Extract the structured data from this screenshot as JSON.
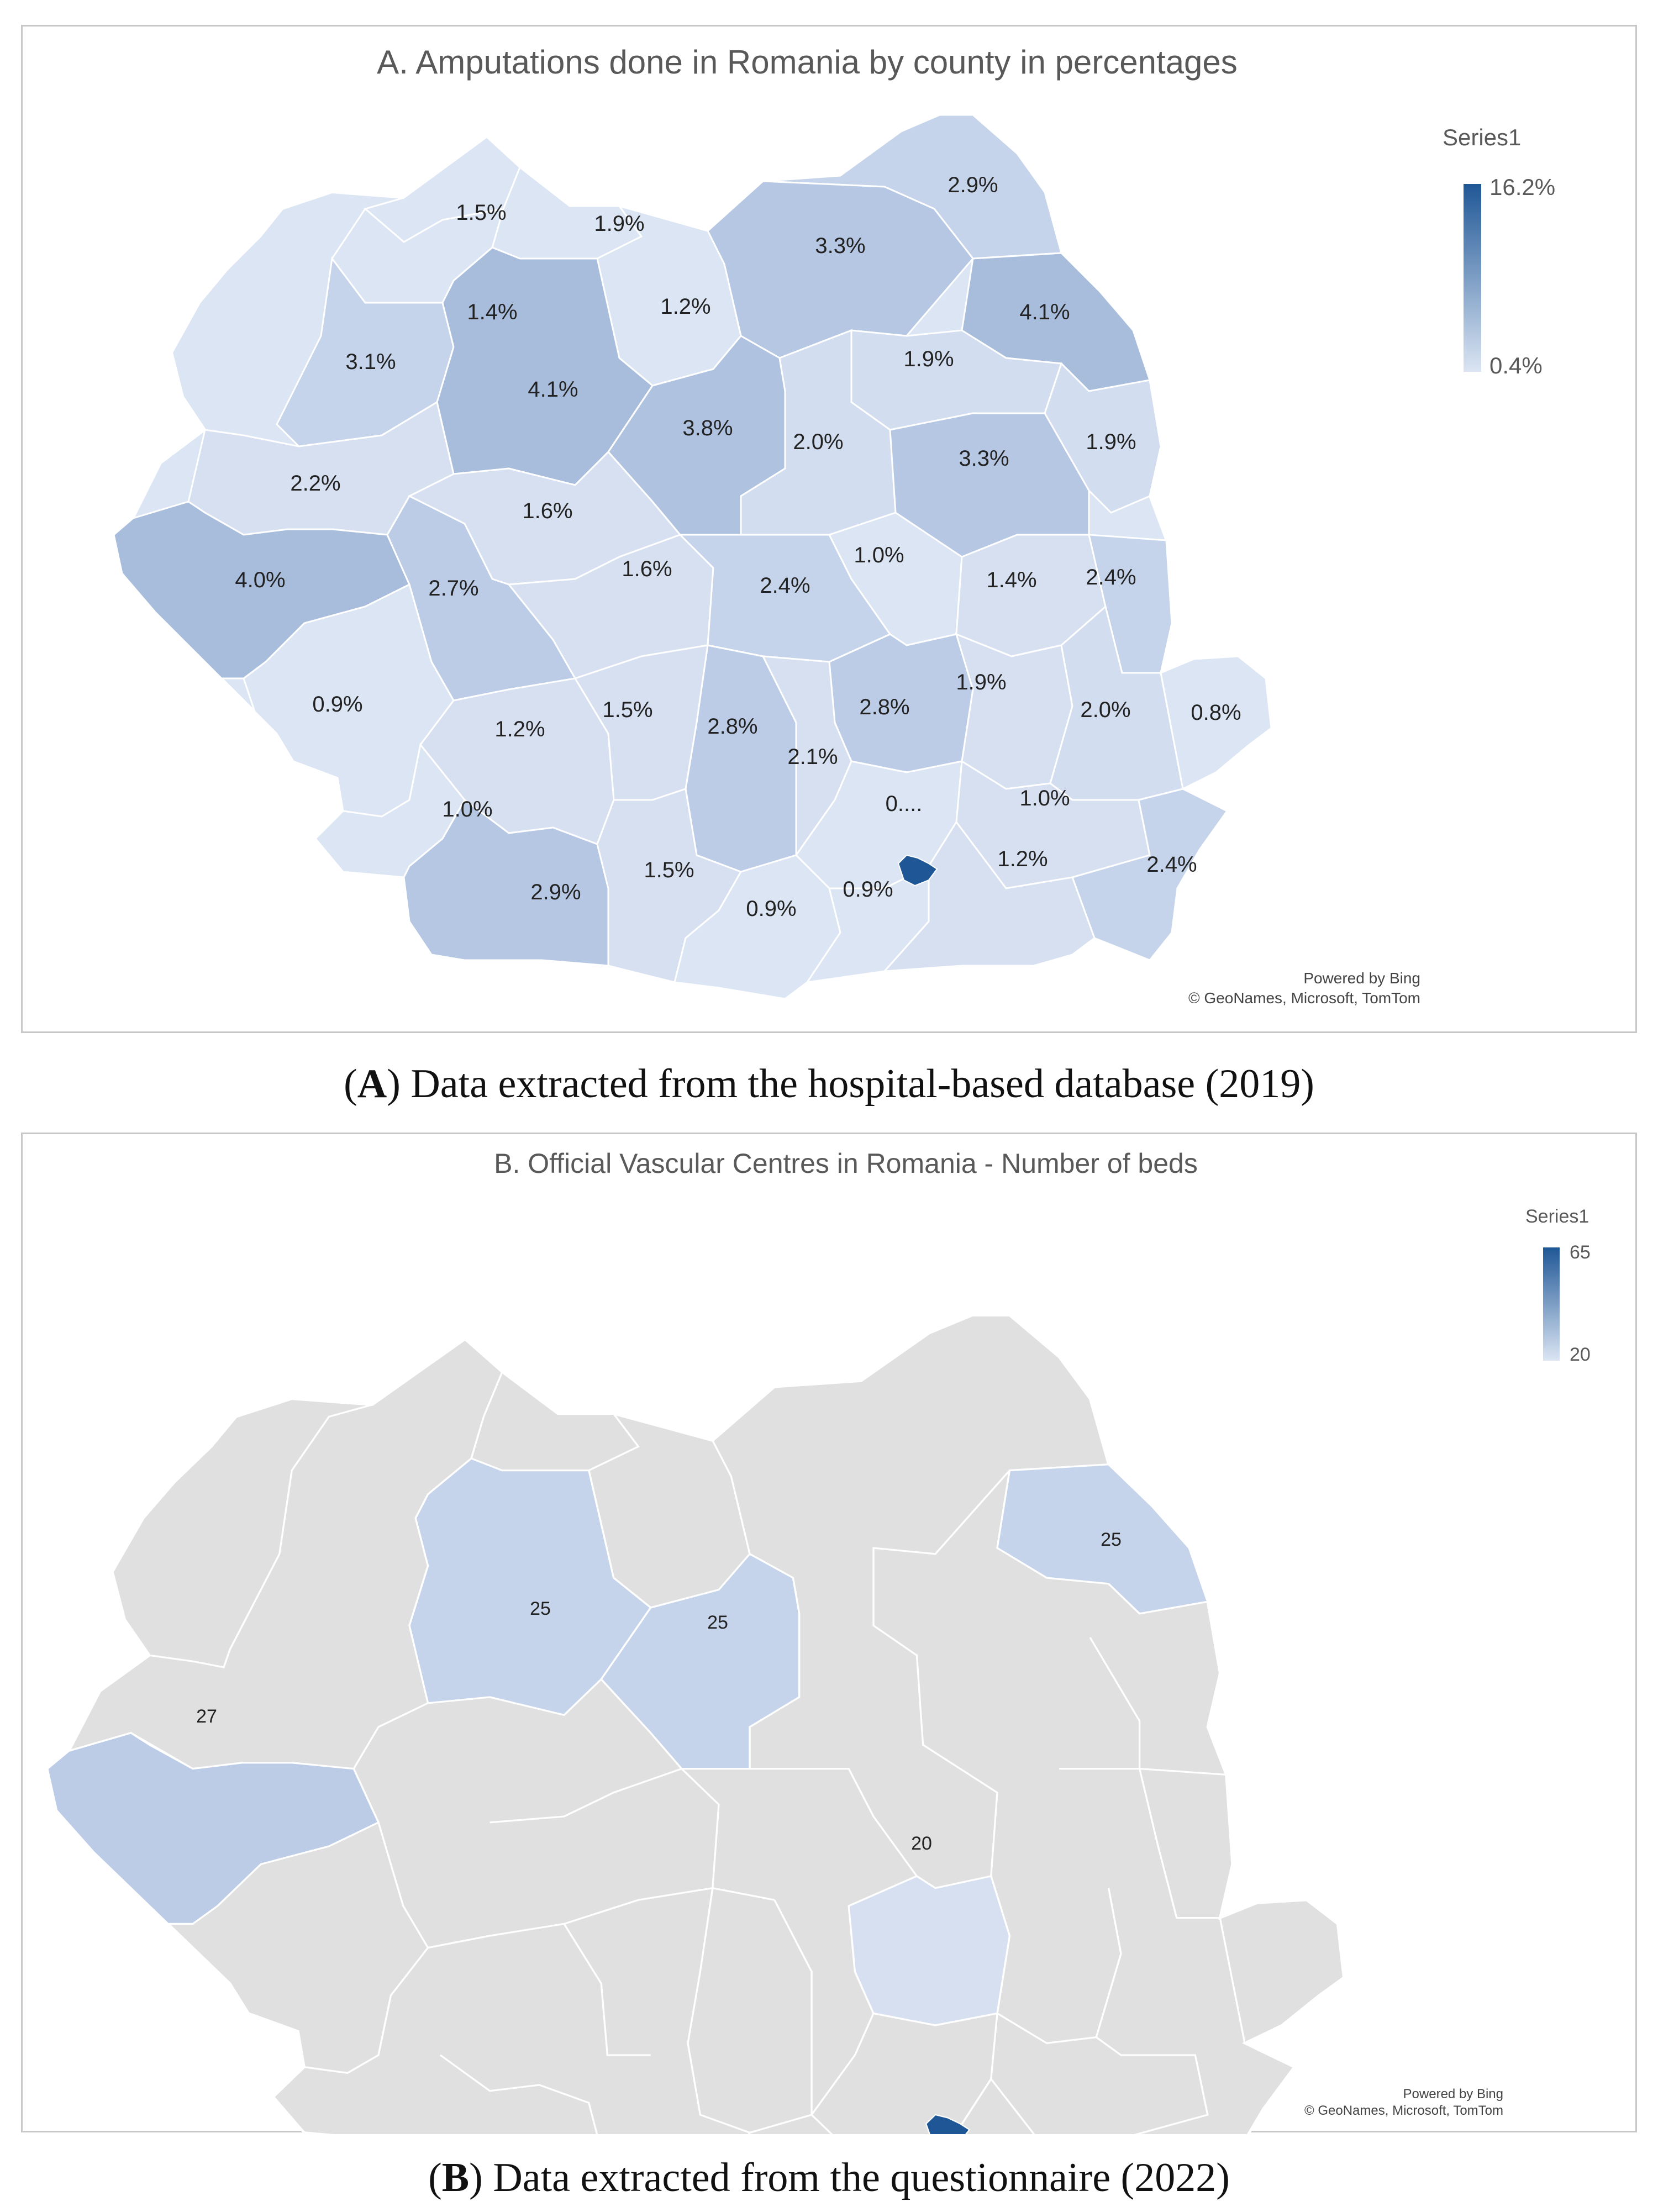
{
  "colors": {
    "scale_max": "#1f5796",
    "scale_high": "#9fb4d8",
    "scale_mid": "#b5c7e3",
    "scale_low": "#cdd9ee",
    "scale_min": "#dbe5f3",
    "no_data": "#e0e0e0",
    "border": "#ffffff",
    "title_text": "#595959",
    "label_text": "#222222"
  },
  "panelA": {
    "title": "A. Amputations done in Romania by county in percentages",
    "legend": {
      "series": "Series1",
      "max": "16.2%",
      "min": "0.4%"
    },
    "credits": {
      "line1": "Powered by Bing",
      "line2": "© GeoNames, Microsoft, TomTom"
    },
    "labels": [
      "1.5%",
      "1.9%",
      "2.9%",
      "3.3%",
      "1.4%",
      "1.2%",
      "4.1%",
      "3.1%",
      "4.1%",
      "1.9%",
      "3.8%",
      "2.0%",
      "3.3%",
      "1.9%",
      "2.2%",
      "1.6%",
      "4.0%",
      "2.7%",
      "1.6%",
      "2.4%",
      "1.0%",
      "1.4%",
      "2.4%",
      "0.9%",
      "1.2%",
      "1.5%",
      "2.8%",
      "2.8%",
      "1.9%",
      "2.0%",
      "0.8%",
      "2.1%",
      "0....",
      "1.0%",
      "1.0%",
      "1.5%",
      "2.9%",
      "0.9%",
      "0.9%",
      "1.2%",
      "2.4%"
    ]
  },
  "panelB": {
    "title": "B. Official Vascular Centres in Romania - Number of beds",
    "legend": {
      "series": "Series1",
      "max": "65",
      "min": "20"
    },
    "credits": {
      "line1": "Powered by Bing",
      "line2": "© GeoNames, Microsoft, TomTom"
    },
    "labels": [
      "25",
      "25",
      "25",
      "27",
      "20"
    ]
  },
  "captionA": {
    "letter": "A",
    "text": " Data extracted from the hospital-based database (2019)"
  },
  "captionB": {
    "letter": "B",
    "text": " Data extracted from the questionnaire (2022)"
  }
}
